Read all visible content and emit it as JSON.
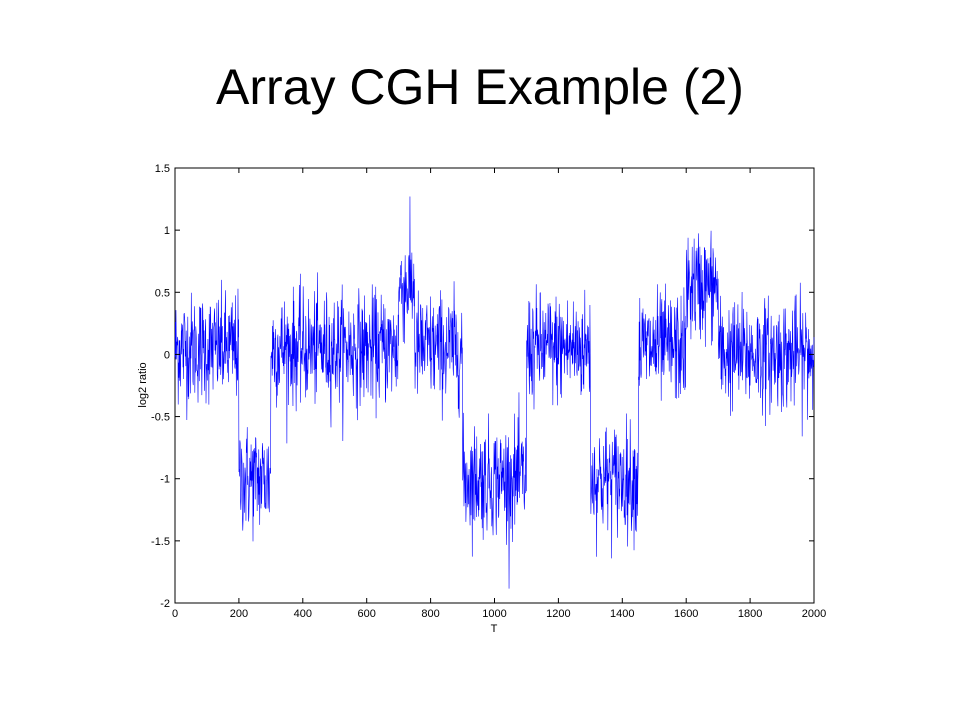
{
  "slide": {
    "title": "Array CGH Example (2)"
  },
  "chart_data": {
    "type": "line",
    "title": "",
    "xlabel": "T",
    "ylabel": "log2 ratio",
    "xlim": [
      0,
      2000
    ],
    "ylim": [
      -2,
      1.5
    ],
    "x_ticks": [
      0,
      200,
      400,
      600,
      800,
      1000,
      1200,
      1400,
      1600,
      1800,
      2000
    ],
    "y_ticks": [
      1.5,
      1,
      0.5,
      0,
      -0.5,
      -1,
      -1.5,
      -2
    ],
    "x_tick_labels": [
      "0",
      "200",
      "400",
      "600",
      "800",
      "1000",
      "1200",
      "1400",
      "1600",
      "1800",
      "2000"
    ],
    "y_tick_labels": [
      "1.5",
      "1",
      "0.5",
      "0",
      "-0.5",
      "-1",
      "-1.5",
      "-2"
    ],
    "grid": false,
    "line_color": "#0000ff",
    "segments": [
      {
        "x_start": 0,
        "x_end": 200,
        "mean": 0.05
      },
      {
        "x_start": 200,
        "x_end": 300,
        "mean": -1.0
      },
      {
        "x_start": 300,
        "x_end": 700,
        "mean": 0.05
      },
      {
        "x_start": 700,
        "x_end": 750,
        "mean": 0.55
      },
      {
        "x_start": 750,
        "x_end": 900,
        "mean": 0.05
      },
      {
        "x_start": 900,
        "x_end": 1100,
        "mean": -1.0
      },
      {
        "x_start": 1100,
        "x_end": 1300,
        "mean": 0.05
      },
      {
        "x_start": 1300,
        "x_end": 1450,
        "mean": -1.0
      },
      {
        "x_start": 1450,
        "x_end": 1600,
        "mean": 0.05
      },
      {
        "x_start": 1600,
        "x_end": 1700,
        "mean": 0.55
      },
      {
        "x_start": 1700,
        "x_end": 2000,
        "mean": 0.0
      }
    ],
    "noise_sd": 0.22,
    "n_points": 2000
  }
}
